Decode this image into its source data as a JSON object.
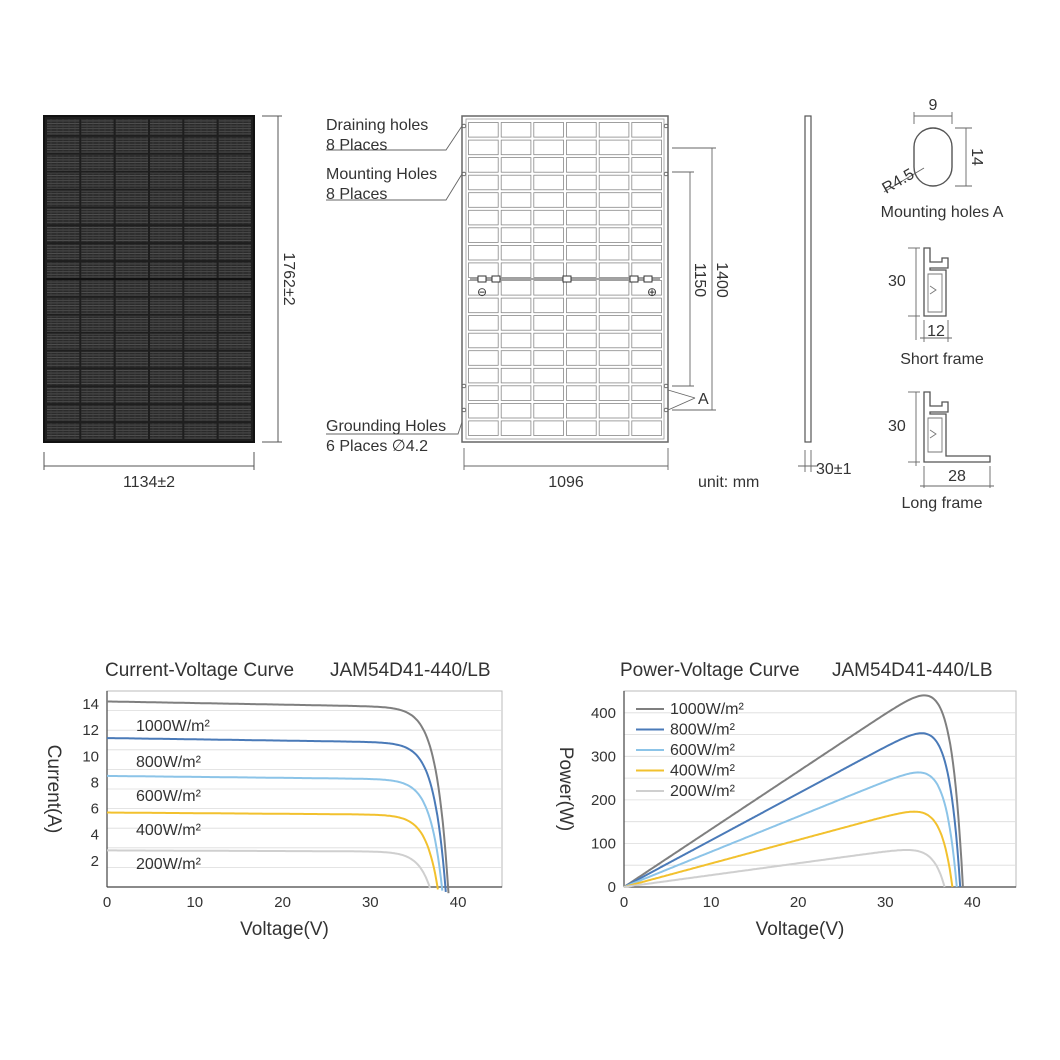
{
  "drawing": {
    "front": {
      "height_dim": "1762±2",
      "width_dim": "1134±2"
    },
    "back": {
      "draining_holes": [
        "Draining holes",
        "8 Places"
      ],
      "mounting_holes": [
        "Mounting Holes",
        "8 Places"
      ],
      "grounding_holes": [
        "Grounding Holes",
        "6 Places ∅4.2"
      ],
      "dim_1400": "1400",
      "dim_1150": "1150",
      "dim_1096": "1096",
      "callout_a": "A",
      "minus_symbol": "⊖",
      "plus_symbol": "⊕"
    },
    "unit": "unit: mm",
    "side": {
      "thickness_dim": "30±1"
    },
    "mounting_hole_detail": {
      "width": "9",
      "height": "14",
      "radius": "R4.5",
      "caption": "Mounting holes A"
    },
    "short_frame": {
      "height": "30",
      "width": "12",
      "caption": "Short frame"
    },
    "long_frame": {
      "height": "30",
      "width": "28",
      "caption": "Long frame"
    }
  },
  "chart_data": [
    {
      "type": "line",
      "title": "Current-Voltage Curve",
      "model": "JAM54D41-440/LB",
      "xlabel": "Voltage(V)",
      "ylabel": "Current(A)",
      "xlim": [
        0,
        45
      ],
      "ylim": [
        0,
        15
      ],
      "xticks": [
        0,
        10,
        20,
        30,
        40
      ],
      "yticks": [
        2,
        4,
        6,
        8,
        10,
        12,
        14
      ],
      "grid": true,
      "legend_position": "inline-left",
      "series": [
        {
          "name": "1000W/m²",
          "color": "#7f7f7f",
          "isc": 14.2,
          "voc": 38.9
        },
        {
          "name": "800W/m²",
          "color": "#4a7ab8",
          "isc": 11.4,
          "voc": 38.6
        },
        {
          "name": "600W/m²",
          "color": "#8cc4e8",
          "isc": 8.5,
          "voc": 38.2
        },
        {
          "name": "400W/m²",
          "color": "#f2c12e",
          "isc": 5.7,
          "voc": 37.7
        },
        {
          "name": "200W/m²",
          "color": "#cfcfcf",
          "isc": 2.8,
          "voc": 36.8
        }
      ]
    },
    {
      "type": "line",
      "title": "Power-Voltage Curve",
      "model": "JAM54D41-440/LB",
      "xlabel": "Voltage(V)",
      "ylabel": "Power(W)",
      "xlim": [
        0,
        45
      ],
      "ylim": [
        0,
        450
      ],
      "xticks": [
        0,
        10,
        20,
        30,
        40
      ],
      "yticks": [
        0,
        100,
        200,
        300,
        400
      ],
      "grid": true,
      "legend_position": "top-left",
      "series": [
        {
          "name": "1000W/m²",
          "color": "#7f7f7f",
          "pmax": 440,
          "vmp": 32.5,
          "voc": 38.9
        },
        {
          "name": "800W/m²",
          "color": "#4a7ab8",
          "pmax": 353,
          "vmp": 32.5,
          "voc": 38.6
        },
        {
          "name": "600W/m²",
          "color": "#8cc4e8",
          "pmax": 263,
          "vmp": 32.3,
          "voc": 38.2
        },
        {
          "name": "400W/m²",
          "color": "#f2c12e",
          "pmax": 173,
          "vmp": 32.0,
          "voc": 37.7
        },
        {
          "name": "200W/m²",
          "color": "#cfcfcf",
          "pmax": 85,
          "vmp": 31.5,
          "voc": 36.8
        }
      ]
    }
  ]
}
